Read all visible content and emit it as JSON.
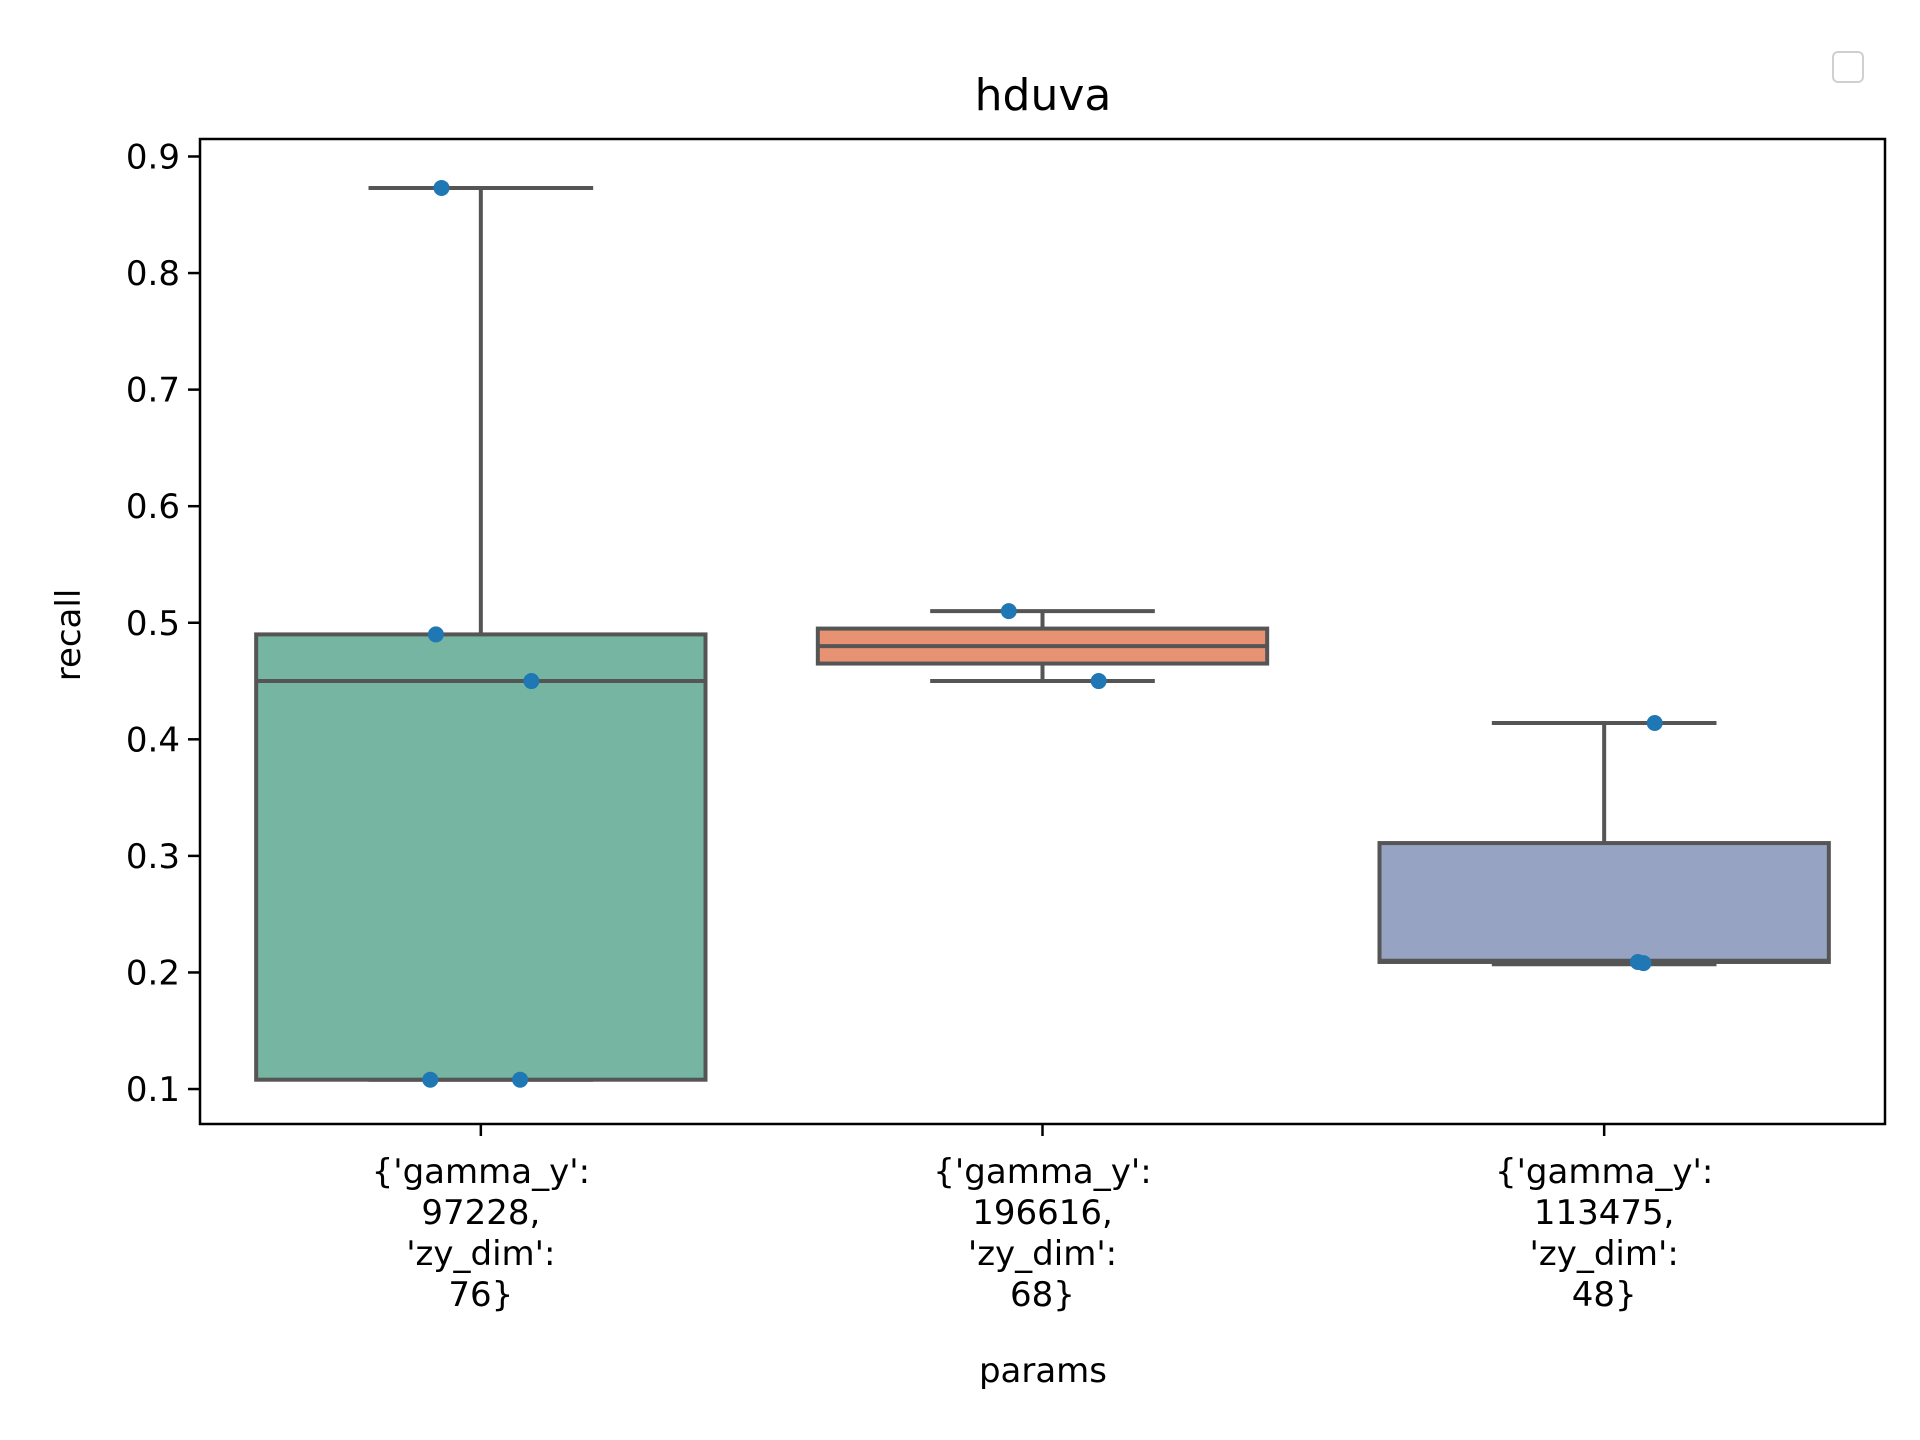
{
  "chart_data": {
    "type": "box",
    "title": "hduva",
    "xlabel": "params",
    "ylabel": "recall",
    "ylim": [
      0.07,
      0.915
    ],
    "yticks": [
      0.1,
      0.2,
      0.3,
      0.4,
      0.5,
      0.6,
      0.7,
      0.8,
      0.9
    ],
    "ytick_labels": [
      "0.1",
      "0.2",
      "0.3",
      "0.4",
      "0.5",
      "0.6",
      "0.7",
      "0.8",
      "0.9"
    ],
    "grid": false,
    "legend": "top-right (empty)",
    "categories": [
      {
        "label_lines": [
          "{'gamma_y':",
          "97228,",
          "'zy_dim':",
          "76}"
        ]
      },
      {
        "label_lines": [
          "{'gamma_y':",
          "196616,",
          "'zy_dim':",
          "68}"
        ]
      },
      {
        "label_lines": [
          "{'gamma_y':",
          "113475,",
          "'zy_dim':",
          "48}"
        ]
      }
    ],
    "boxes": [
      {
        "whisker_low": 0.108,
        "q1": 0.108,
        "median": 0.45,
        "q3": 0.49,
        "whisker_high": 0.873,
        "color": "#76b5a2"
      },
      {
        "whisker_low": 0.45,
        "q1": 0.465,
        "median": 0.48,
        "q3": 0.495,
        "whisker_high": 0.51,
        "color": "#e79273"
      },
      {
        "whisker_low": 0.207,
        "q1": 0.209,
        "median": 0.21,
        "q3": 0.311,
        "whisker_high": 0.414,
        "color": "#96a3c2"
      }
    ],
    "points": [
      [
        {
          "jitter": -0.07,
          "y": 0.873
        },
        {
          "jitter": -0.08,
          "y": 0.49
        },
        {
          "jitter": 0.09,
          "y": 0.45
        },
        {
          "jitter": -0.09,
          "y": 0.108
        },
        {
          "jitter": 0.07,
          "y": 0.108
        }
      ],
      [
        {
          "jitter": -0.06,
          "y": 0.51
        },
        {
          "jitter": 0.1,
          "y": 0.45
        }
      ],
      [
        {
          "jitter": 0.09,
          "y": 0.414
        },
        {
          "jitter": 0.06,
          "y": 0.209
        },
        {
          "jitter": 0.07,
          "y": 0.208
        }
      ]
    ],
    "point_color": "#1f77b4",
    "line_color": "#555555"
  }
}
